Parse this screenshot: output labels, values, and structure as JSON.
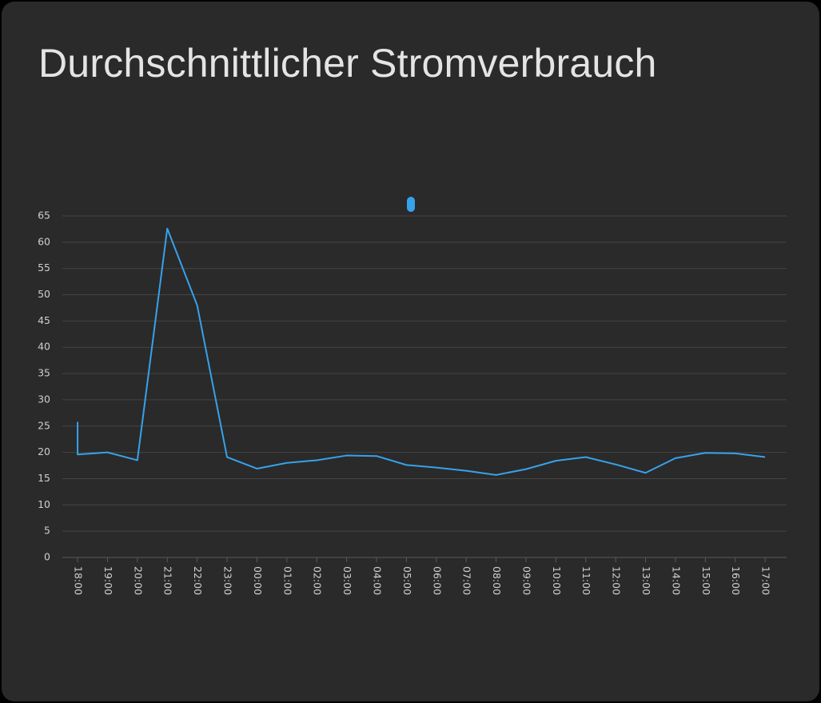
{
  "chart_data": {
    "type": "line",
    "title": "Durchschnittlicher Stromverbrauch",
    "x": [
      0,
      0,
      1,
      2,
      3,
      4,
      5,
      6,
      7,
      8,
      9,
      10,
      11,
      12,
      13,
      14,
      15,
      16,
      17,
      18,
      19,
      20,
      21,
      22,
      23
    ],
    "series": [
      {
        "color": "#36a2eb",
        "values": [
          25.8,
          19.6,
          20,
          18.5,
          62.6,
          48,
          19.1,
          16.9,
          18,
          18.5,
          19.4,
          19.3,
          17.6,
          17.1,
          16.5,
          15.7,
          16.8,
          18.4,
          19.1,
          17.7,
          16.1,
          18.9,
          19.9,
          19.8,
          19.1
        ]
      }
    ],
    "xlim": [
      -0.51,
      23.72
    ],
    "xticks": [
      {
        "value": 0,
        "label": "18:00"
      },
      {
        "value": 1,
        "label": "19:00"
      },
      {
        "value": 2,
        "label": "20:00"
      },
      {
        "value": 3,
        "label": "21:00"
      },
      {
        "value": 4,
        "label": "22:00"
      },
      {
        "value": 5,
        "label": "23:00"
      },
      {
        "value": 6,
        "label": "00:00"
      },
      {
        "value": 7,
        "label": "01:00"
      },
      {
        "value": 8,
        "label": "02:00"
      },
      {
        "value": 9,
        "label": "03:00"
      },
      {
        "value": 10,
        "label": "04:00"
      },
      {
        "value": 11,
        "label": "05:00"
      },
      {
        "value": 12,
        "label": "06:00"
      },
      {
        "value": 13,
        "label": "07:00"
      },
      {
        "value": 14,
        "label": "08:00"
      },
      {
        "value": 15,
        "label": "09:00"
      },
      {
        "value": 16,
        "label": "10:00"
      },
      {
        "value": 17,
        "label": "11:00"
      },
      {
        "value": 18,
        "label": "12:00"
      },
      {
        "value": 19,
        "label": "13:00"
      },
      {
        "value": 20,
        "label": "14:00"
      },
      {
        "value": 21,
        "label": "15:00"
      },
      {
        "value": 22,
        "label": "16:00"
      },
      {
        "value": 23,
        "label": "17:00"
      }
    ],
    "ylim": [
      0,
      65
    ],
    "yticks": [
      0,
      5,
      10,
      15,
      20,
      25,
      30,
      35,
      40,
      45,
      50,
      55,
      60,
      65
    ],
    "grid": true
  }
}
